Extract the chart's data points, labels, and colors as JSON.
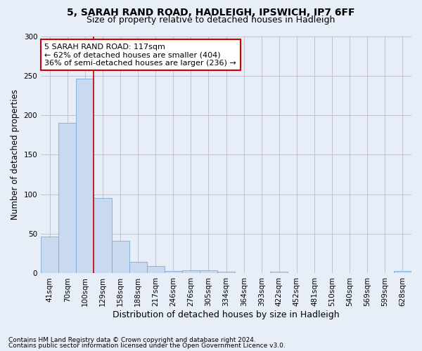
{
  "title1": "5, SARAH RAND ROAD, HADLEIGH, IPSWICH, IP7 6FF",
  "title2": "Size of property relative to detached houses in Hadleigh",
  "xlabel": "Distribution of detached houses by size in Hadleigh",
  "ylabel": "Number of detached properties",
  "footer1": "Contains HM Land Registry data © Crown copyright and database right 2024.",
  "footer2": "Contains public sector information licensed under the Open Government Licence v3.0.",
  "bin_labels": [
    "41sqm",
    "70sqm",
    "100sqm",
    "129sqm",
    "158sqm",
    "188sqm",
    "217sqm",
    "246sqm",
    "276sqm",
    "305sqm",
    "334sqm",
    "364sqm",
    "393sqm",
    "422sqm",
    "452sqm",
    "481sqm",
    "510sqm",
    "540sqm",
    "569sqm",
    "599sqm",
    "628sqm"
  ],
  "bar_values": [
    47,
    190,
    246,
    95,
    41,
    15,
    9,
    3,
    4,
    4,
    2,
    0,
    0,
    2,
    0,
    0,
    0,
    0,
    0,
    0,
    3
  ],
  "bar_color": "#c8d9f0",
  "bar_edge_color": "#7aadd6",
  "grid_color": "#bbbbcc",
  "annotation_text": "5 SARAH RAND ROAD: 117sqm\n← 62% of detached houses are smaller (404)\n36% of semi-detached houses are larger (236) →",
  "annotation_box_color": "#ffffff",
  "annotation_box_edge": "#cc0000",
  "vline_color": "#cc0000",
  "vline_x": 2.47,
  "ylim": [
    0,
    300
  ],
  "yticks": [
    0,
    50,
    100,
    150,
    200,
    250,
    300
  ],
  "bg_color": "#e8eef8",
  "title1_fontsize": 10,
  "title2_fontsize": 9,
  "annotation_fontsize": 8,
  "ylabel_fontsize": 8.5,
  "xlabel_fontsize": 9,
  "tick_fontsize": 7.5,
  "footer_fontsize": 6.5
}
